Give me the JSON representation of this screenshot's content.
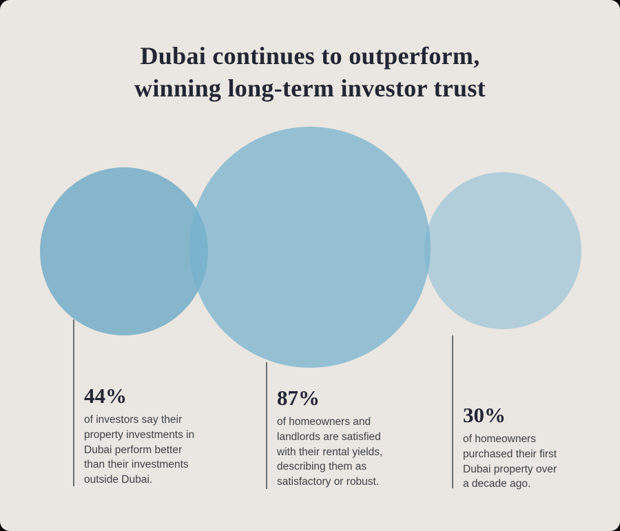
{
  "title": {
    "line1": "Dubai continues to outperform,",
    "line2": "winning long-term investor trust"
  },
  "stats": [
    {
      "value": "44%",
      "description": "of investors say their\nproperty investments in\nDubai perform better\nthan their investments\noutside Dubai."
    },
    {
      "value": "87%",
      "description": "of homeowners and\nlandlords are satisfied\nwith their rental yields,\ndescribing them as\nsatisfactory or robust."
    },
    {
      "value": "30%",
      "description": "of homeowners\npurchased their first\nDubai property over\na decade ago."
    }
  ],
  "colors": {
    "background": "#EAE6E1",
    "title_text": "#222634",
    "body_text": "#3D414A",
    "circle_left": "#85B6CB",
    "circle_middle": "rgba(117,177,205,0.72)",
    "circle_right": "#B2CEDA",
    "connector_line": "#565A63"
  },
  "chart_data": {
    "type": "bar",
    "title": "Dubai continues to outperform, winning long-term investor trust",
    "categories": [
      "of investors say their property investments in Dubai perform better than their investments outside Dubai.",
      "of homeowners and landlords are satisfied with their rental yields, describing them as satisfactory or robust.",
      "of homeowners purchased their first Dubai property over a decade ago."
    ],
    "values": [
      44,
      87,
      30
    ],
    "unit": "%",
    "xlabel": "",
    "ylabel": "",
    "ylim": [
      0,
      100
    ],
    "legend": "none",
    "grid": false,
    "render_style": "proportional-bubbles"
  }
}
